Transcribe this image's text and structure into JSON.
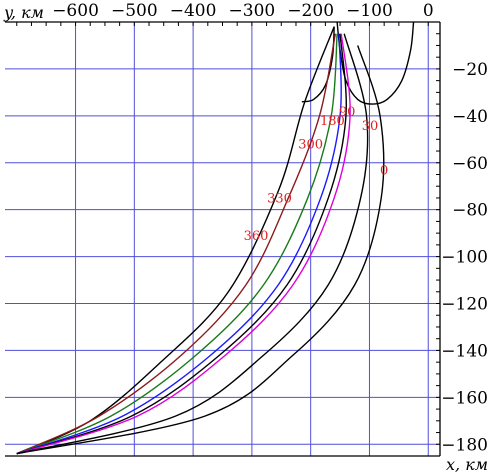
{
  "chart_data": {
    "type": "line",
    "xlabel": "x, км",
    "ylabel": "y, км",
    "xlim": [
      -720,
      20
    ],
    "ylim": [
      -185,
      0
    ],
    "x_ticks": [
      -600,
      -500,
      -400,
      -300,
      -200,
      -100,
      0
    ],
    "x_tick_labels": [
      "−600",
      "−500",
      "−400",
      "−300",
      "−200",
      "−100",
      "0"
    ],
    "y_ticks": [
      -20,
      -40,
      -60,
      -80,
      -100,
      -120,
      -140,
      -160,
      -180
    ],
    "y_tick_labels": [
      "−20",
      "−40",
      "−60",
      "−80",
      "−100",
      "−120",
      "−140",
      "−160",
      "−180"
    ],
    "grid": true,
    "grid_color": "#4f4fd9",
    "annotation_color": "#e02020",
    "annotations": [
      {
        "text": "360",
        "x": -293,
        "y": -93
      },
      {
        "text": "330",
        "x": -253,
        "y": -77
      },
      {
        "text": "300",
        "x": -200,
        "y": -54
      },
      {
        "text": "180",
        "x": -163,
        "y": -44
      },
      {
        "text": "90",
        "x": -138,
        "y": -40
      },
      {
        "text": "30",
        "x": -99,
        "y": -46
      },
      {
        "text": "0",
        "x": -75,
        "y": -65
      }
    ],
    "series": [
      {
        "color": "#000000",
        "points": [
          [
            -160,
            -2
          ],
          [
            -210,
            -34
          ],
          [
            -255,
            -72
          ],
          [
            -340,
            -115
          ],
          [
            -455,
            -145
          ],
          [
            -575,
            -170
          ],
          [
            -700,
            -184
          ]
        ]
      },
      {
        "color": "#8b1a1a",
        "points": [
          [
            -158,
            -5
          ],
          [
            -185,
            -40
          ],
          [
            -238,
            -75
          ],
          [
            -310,
            -112
          ],
          [
            -420,
            -142
          ],
          [
            -560,
            -168
          ],
          [
            -700,
            -184
          ]
        ]
      },
      {
        "color": "#1a7a1a",
        "points": [
          [
            -155,
            -5
          ],
          [
            -165,
            -40
          ],
          [
            -205,
            -75
          ],
          [
            -280,
            -112
          ],
          [
            -395,
            -142
          ],
          [
            -540,
            -168
          ],
          [
            -700,
            -184
          ]
        ]
      },
      {
        "color": "#1a1aff",
        "points": [
          [
            -152,
            -5
          ],
          [
            -150,
            -40
          ],
          [
            -183,
            -75
          ],
          [
            -255,
            -112
          ],
          [
            -370,
            -142
          ],
          [
            -520,
            -168
          ],
          [
            -700,
            -184
          ]
        ]
      },
      {
        "color": "#000000",
        "points": [
          [
            -150,
            -5
          ],
          [
            -140,
            -40
          ],
          [
            -170,
            -75
          ],
          [
            -240,
            -112
          ],
          [
            -355,
            -142
          ],
          [
            -505,
            -168
          ],
          [
            -700,
            -184
          ]
        ]
      },
      {
        "color": "#dd00dd",
        "points": [
          [
            -148,
            -5
          ],
          [
            -133,
            -40
          ],
          [
            -160,
            -75
          ],
          [
            -230,
            -112
          ],
          [
            -345,
            -142
          ],
          [
            -495,
            -168
          ],
          [
            -700,
            -184
          ]
        ]
      },
      {
        "color": "#000000",
        "points": [
          [
            -143,
            -5
          ],
          [
            -105,
            -40
          ],
          [
            -115,
            -75
          ],
          [
            -170,
            -112
          ],
          [
            -280,
            -142
          ],
          [
            -430,
            -168
          ],
          [
            -700,
            -184
          ]
        ]
      },
      {
        "color": "#000000",
        "points": [
          [
            -120,
            -10
          ],
          [
            -82,
            -40
          ],
          [
            -80,
            -75
          ],
          [
            -125,
            -112
          ],
          [
            -230,
            -142
          ],
          [
            -380,
            -168
          ],
          [
            -700,
            -184
          ]
        ]
      }
    ],
    "boundary_curves": [
      {
        "color": "#000000",
        "points": [
          [
            -155,
            0
          ],
          [
            -150,
            -12
          ],
          [
            -140,
            -25
          ],
          [
            -120,
            -33
          ],
          [
            -95,
            -35
          ],
          [
            -70,
            -33
          ],
          [
            -45,
            -25
          ],
          [
            -30,
            -12
          ],
          [
            -25,
            0
          ]
        ]
      },
      {
        "color": "#000000",
        "points": [
          [
            -160,
            -2
          ],
          [
            -163,
            -15
          ],
          [
            -175,
            -27
          ],
          [
            -195,
            -33
          ],
          [
            -215,
            -34
          ]
        ]
      }
    ]
  }
}
